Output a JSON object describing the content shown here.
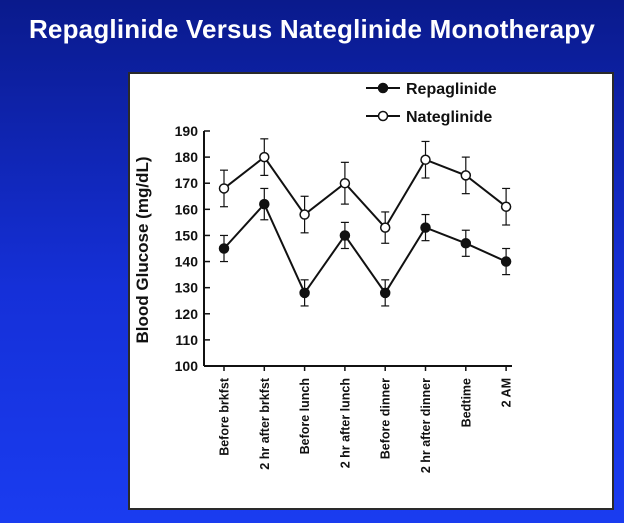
{
  "slide": {
    "title": "Repaglinide Versus Nateglinide Monotherapy"
  },
  "chart_data": {
    "type": "line",
    "ylabel": "Blood Glucose (mg/dL)",
    "xlabel": "",
    "ylim": [
      100,
      190
    ],
    "yticks": [
      100,
      110,
      120,
      130,
      140,
      150,
      160,
      170,
      180,
      190
    ],
    "categories": [
      "Before brkfst",
      "2 hr after brkfst",
      "Before lunch",
      "2 hr after lunch",
      "Before dinner",
      "2 hr after dinner",
      "Bedtime",
      "2 AM"
    ],
    "legend_position": "top-right",
    "series": [
      {
        "name": "Repaglinide",
        "marker": "filled-circle",
        "values": [
          145,
          162,
          128,
          150,
          128,
          153,
          147,
          140
        ],
        "error": [
          5,
          6,
          5,
          5,
          5,
          5,
          5,
          5
        ]
      },
      {
        "name": "Nateglinide",
        "marker": "open-circle",
        "values": [
          168,
          180,
          158,
          170,
          153,
          179,
          173,
          161
        ],
        "error": [
          7,
          7,
          7,
          8,
          6,
          7,
          7,
          7
        ]
      }
    ]
  }
}
